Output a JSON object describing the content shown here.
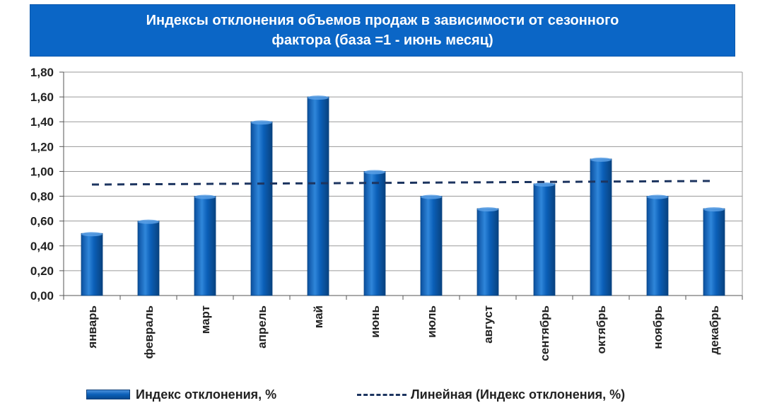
{
  "chart_data": {
    "type": "bar",
    "title_lines": [
      "Индексы отклонения объемов продаж в зависимости от сезонного",
      "фактора (база =1 - июнь месяц)"
    ],
    "categories": [
      "январь",
      "февраль",
      "март",
      "апрель",
      "май",
      "июнь",
      "июль",
      "август",
      "сентябрь",
      "октябрь",
      "ноябрь",
      "декабрь"
    ],
    "series": [
      {
        "name": "Индекс отклонения, %",
        "values": [
          0.5,
          0.6,
          0.8,
          1.4,
          1.6,
          1.0,
          0.8,
          0.7,
          0.9,
          1.1,
          0.8,
          0.7
        ]
      }
    ],
    "trendline": {
      "name": "Линейная (Индекс отклонения, %)",
      "type": "linear",
      "start": 0.894,
      "end": 0.923
    },
    "ylim": [
      0,
      1.8
    ],
    "yticks": [
      "0,00",
      "0,20",
      "0,40",
      "0,60",
      "0,80",
      "1,00",
      "1,20",
      "1,40",
      "1,60",
      "1,80"
    ],
    "grid": true,
    "legend_position": "bottom",
    "colors": {
      "bar": "#0b5fb8",
      "trend": "#1d3560",
      "title_bg": "#0b66c6"
    }
  }
}
